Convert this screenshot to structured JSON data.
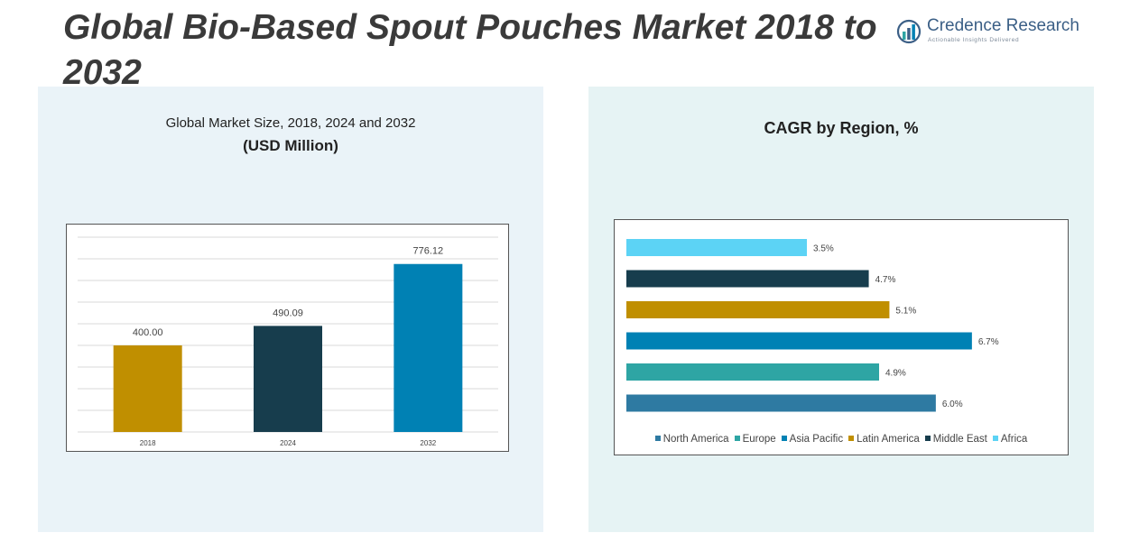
{
  "title": "Global Bio-Based Spout Pouches Market 2018 to 2032",
  "logo": {
    "name": "Credence Research",
    "tagline": "Actionable Insights Delivered",
    "icon": "credence-logo-icon"
  },
  "colors": {
    "gold": "#c08f00",
    "navy": "#173d4d",
    "blue": "#0081b4",
    "teal": "#2ea5a4",
    "steel": "#2e7aa2",
    "sky": "#5cd3f5"
  },
  "chart_data": [
    {
      "type": "bar",
      "title": "Global Market Size, 2018, 2024 and 2032",
      "subtitle": "(USD Million)",
      "categories": [
        "2018",
        "2024",
        "2032"
      ],
      "values": [
        400.0,
        490.09,
        776.12
      ],
      "value_labels": [
        "400.00",
        "490.09",
        "776.12"
      ],
      "bar_colors": [
        "#c08f00",
        "#173d4d",
        "#0081b4"
      ],
      "ylim": [
        0,
        900
      ],
      "grid": true
    },
    {
      "type": "bar",
      "orientation": "horizontal",
      "title": "CAGR by Region, %",
      "categories": [
        "Africa",
        "Middle East",
        "Latin America",
        "Asia Pacific",
        "Europe",
        "North America"
      ],
      "values": [
        3.5,
        4.7,
        5.1,
        6.7,
        4.9,
        6.0
      ],
      "value_labels": [
        "3.5%",
        "4.7%",
        "5.1%",
        "6.7%",
        "4.9%",
        "6.0%"
      ],
      "bar_colors": [
        "#5cd3f5",
        "#173d4d",
        "#c08f00",
        "#0081b4",
        "#2ea5a4",
        "#2e7aa2"
      ],
      "xlim": [
        0,
        7.0
      ],
      "grid": false,
      "legend": {
        "placement": "bottom",
        "entries": [
          {
            "label": "North America",
            "color": "#2e7aa2"
          },
          {
            "label": "Europe",
            "color": "#2ea5a4"
          },
          {
            "label": "Asia Pacific",
            "color": "#0081b4"
          },
          {
            "label": "Latin America",
            "color": "#c08f00"
          },
          {
            "label": "Middle East",
            "color": "#173d4d"
          },
          {
            "label": "Africa",
            "color": "#5cd3f5"
          }
        ]
      }
    }
  ]
}
